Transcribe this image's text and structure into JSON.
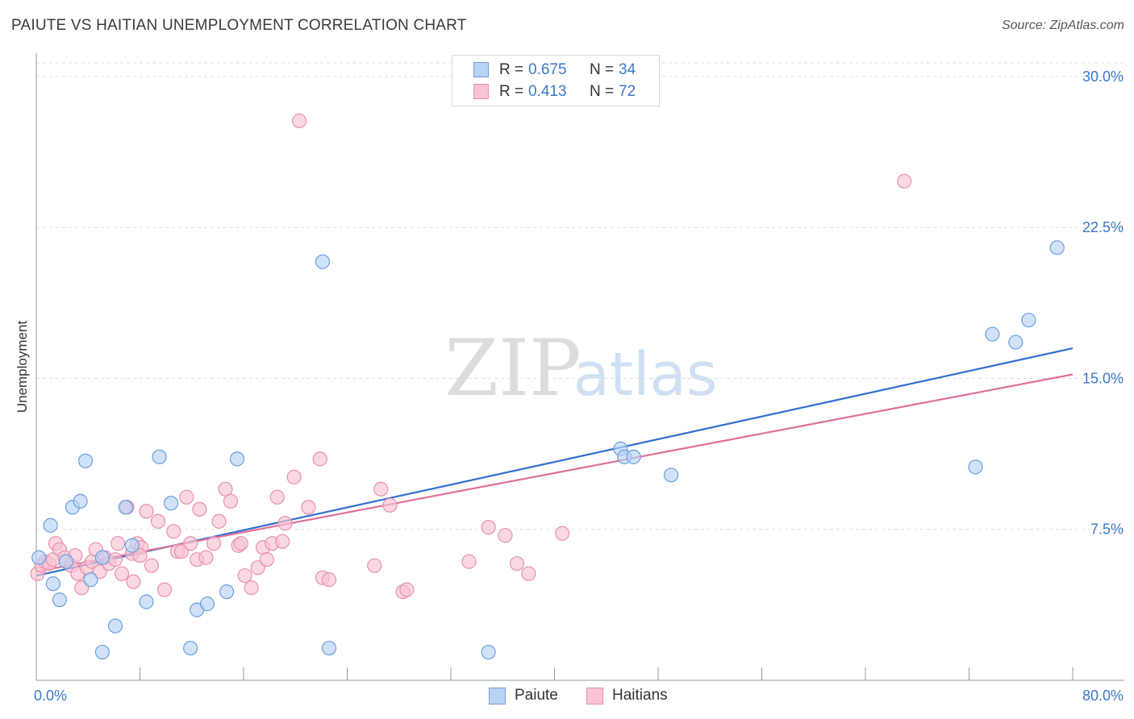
{
  "header": {
    "title": "PAIUTE VS HAITIAN UNEMPLOYMENT CORRELATION CHART",
    "source": "Source: ZipAtlas.com"
  },
  "watermark": {
    "zip": "ZIP",
    "atlas": "atlas"
  },
  "colors": {
    "paiute_fill": "#b9d3f5",
    "paiute_stroke": "#6a9fe0",
    "paiute_line": "#2f6fcf",
    "haitians_fill": "#f8c3d3",
    "haitians_stroke": "#e890ad",
    "haitians_line": "#e07098",
    "tick_label": "#3b78c8",
    "grid": "#dddddd"
  },
  "legend": {
    "rows": [
      {
        "r_label": "R =",
        "r_value": "0.675",
        "n_label": "N =",
        "n_value": "34"
      },
      {
        "r_label": "R =",
        "r_value": "0.413",
        "n_label": "N =",
        "n_value": "72"
      }
    ]
  },
  "bottom_legend": {
    "paiute": "Paiute",
    "haitians": "Haitians"
  },
  "chart_data": {
    "type": "scatter",
    "title": "PAIUTE VS HAITIAN UNEMPLOYMENT CORRELATION CHART",
    "xlabel": "",
    "ylabel": "Unemployment",
    "xlim": [
      0,
      80
    ],
    "ylim": [
      0,
      31
    ],
    "x_tick_labels": [
      {
        "value": 0,
        "label": "0.0%"
      },
      {
        "value": 80,
        "label": "80.0%"
      }
    ],
    "y_tick_labels": [
      {
        "value": 7.5,
        "label": "7.5%"
      },
      {
        "value": 15,
        "label": "15.0%"
      },
      {
        "value": 22.5,
        "label": "22.5%"
      },
      {
        "value": 30,
        "label": "30.0%"
      }
    ],
    "grid": true,
    "legend_position": "top-center",
    "series": [
      {
        "name": "Paiute",
        "r": 0.675,
        "n": 34,
        "trend": {
          "x": [
            0,
            80
          ],
          "y": [
            5.2,
            16.5
          ]
        },
        "points": [
          [
            0.2,
            6.1
          ],
          [
            1.1,
            7.7
          ],
          [
            1.3,
            4.8
          ],
          [
            1.8,
            4.0
          ],
          [
            2.3,
            5.9
          ],
          [
            2.8,
            8.6
          ],
          [
            3.4,
            8.9
          ],
          [
            3.8,
            10.9
          ],
          [
            4.2,
            5.0
          ],
          [
            5.1,
            6.1
          ],
          [
            6.1,
            2.7
          ],
          [
            5.1,
            1.4
          ],
          [
            6.9,
            8.6
          ],
          [
            7.4,
            6.7
          ],
          [
            8.5,
            3.9
          ],
          [
            9.5,
            11.1
          ],
          [
            10.4,
            8.8
          ],
          [
            11.9,
            1.6
          ],
          [
            12.4,
            3.5
          ],
          [
            13.2,
            3.8
          ],
          [
            14.7,
            4.4
          ],
          [
            15.5,
            11.0
          ],
          [
            22.1,
            20.8
          ],
          [
            22.6,
            1.6
          ],
          [
            34.9,
            1.4
          ],
          [
            45.1,
            11.5
          ],
          [
            45.4,
            11.1
          ],
          [
            46.1,
            11.1
          ],
          [
            49.0,
            10.2
          ],
          [
            72.5,
            10.6
          ],
          [
            73.8,
            17.2
          ],
          [
            75.6,
            16.8
          ],
          [
            76.6,
            17.9
          ],
          [
            78.8,
            21.5
          ]
        ]
      },
      {
        "name": "Haitians",
        "r": 0.413,
        "n": 72,
        "trend": {
          "x": [
            0,
            80
          ],
          "y": [
            5.4,
            15.2
          ]
        },
        "points": [
          [
            0.1,
            5.3
          ],
          [
            0.4,
            5.7
          ],
          [
            0.7,
            5.9
          ],
          [
            1.0,
            5.8
          ],
          [
            1.3,
            6.0
          ],
          [
            1.5,
            6.8
          ],
          [
            1.8,
            6.5
          ],
          [
            2.2,
            6.1
          ],
          [
            2.7,
            5.7
          ],
          [
            3.0,
            6.2
          ],
          [
            3.2,
            5.3
          ],
          [
            3.5,
            4.6
          ],
          [
            3.9,
            5.6
          ],
          [
            4.3,
            5.9
          ],
          [
            4.6,
            6.5
          ],
          [
            4.9,
            5.4
          ],
          [
            5.3,
            6.1
          ],
          [
            5.6,
            5.8
          ],
          [
            6.1,
            6.0
          ],
          [
            6.3,
            6.8
          ],
          [
            6.6,
            5.3
          ],
          [
            7.0,
            8.6
          ],
          [
            7.4,
            6.3
          ],
          [
            7.5,
            4.9
          ],
          [
            7.8,
            6.8
          ],
          [
            8.1,
            6.6
          ],
          [
            8.5,
            8.4
          ],
          [
            8.9,
            5.7
          ],
          [
            9.4,
            7.9
          ],
          [
            9.9,
            4.5
          ],
          [
            10.6,
            7.4
          ],
          [
            10.9,
            6.4
          ],
          [
            11.2,
            6.4
          ],
          [
            11.6,
            9.1
          ],
          [
            11.9,
            6.8
          ],
          [
            12.4,
            6.0
          ],
          [
            12.6,
            8.5
          ],
          [
            13.1,
            6.1
          ],
          [
            13.7,
            6.8
          ],
          [
            14.1,
            7.9
          ],
          [
            14.6,
            9.5
          ],
          [
            15.0,
            8.9
          ],
          [
            15.6,
            6.7
          ],
          [
            15.8,
            6.8
          ],
          [
            16.1,
            5.2
          ],
          [
            16.6,
            4.6
          ],
          [
            17.1,
            5.6
          ],
          [
            17.5,
            6.6
          ],
          [
            17.8,
            6.0
          ],
          [
            18.2,
            6.8
          ],
          [
            18.6,
            9.1
          ],
          [
            19.2,
            7.8
          ],
          [
            19.9,
            10.1
          ],
          [
            20.3,
            27.8
          ],
          [
            21.0,
            8.6
          ],
          [
            21.9,
            11.0
          ],
          [
            22.1,
            5.1
          ],
          [
            22.6,
            5.0
          ],
          [
            26.1,
            5.7
          ],
          [
            26.6,
            9.5
          ],
          [
            28.3,
            4.4
          ],
          [
            28.6,
            4.5
          ],
          [
            33.4,
            5.9
          ],
          [
            34.9,
            7.6
          ],
          [
            36.2,
            7.2
          ],
          [
            37.1,
            5.8
          ],
          [
            38.0,
            5.3
          ],
          [
            40.6,
            7.3
          ],
          [
            67.0,
            24.8
          ],
          [
            27.3,
            8.7
          ],
          [
            19.0,
            6.9
          ],
          [
            8.0,
            6.2
          ]
        ]
      }
    ]
  }
}
